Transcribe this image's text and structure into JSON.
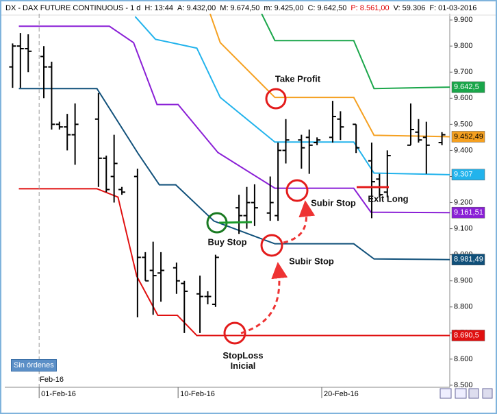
{
  "chart_data": {
    "type": "ohlc",
    "info": [
      "DX - DAX FUTURE CONTINUOUS - 1 d",
      "H: 13:44",
      "A: 9.432,00",
      "M: 9.674,50",
      "m: 9.425,00",
      "C: 9.642,50",
      "P: 8.561,00",
      "V: 59.306",
      "F: 01-03-2016"
    ],
    "status": "Sin órdenes",
    "x_period_label": "Feb-16",
    "xlim": [
      -1,
      56
    ],
    "xticks": [
      {
        "value": 3.4,
        "label": "01-Feb-16"
      },
      {
        "value": 21.2,
        "label": "10-Feb-16"
      },
      {
        "value": 39.6,
        "label": "20-Feb-16"
      }
    ],
    "ylim": [
      8492,
      9924
    ],
    "yticks": [
      {
        "value": 8500,
        "label": "8.500"
      },
      {
        "value": 8600,
        "label": "8.600"
      },
      {
        "value": 8700,
        "label": "8.700"
      },
      {
        "value": 8800,
        "label": "8.800"
      },
      {
        "value": 8900,
        "label": "8.900"
      },
      {
        "value": 9000,
        "label": "9.000"
      },
      {
        "value": 9100,
        "label": "9.100"
      },
      {
        "value": 9200,
        "label": "9.200"
      },
      {
        "value": 9300,
        "label": "9.300"
      },
      {
        "value": 9400,
        "label": "9.400"
      },
      {
        "value": 9500,
        "label": "9.500"
      },
      {
        "value": 9600,
        "label": "9.600"
      },
      {
        "value": 9700,
        "label": "9.700"
      },
      {
        "value": 9800,
        "label": "9.800"
      },
      {
        "value": 9900,
        "label": "9.900"
      }
    ],
    "grid": false,
    "bars": {
      "color": "#000000",
      "x": [
        0,
        1,
        2,
        4,
        5,
        6,
        7,
        8,
        11,
        12,
        13,
        14,
        16,
        17,
        18,
        19,
        21,
        22,
        24,
        25,
        26,
        29,
        30,
        31,
        33,
        34,
        35,
        37,
        38,
        39,
        41,
        42,
        44,
        46,
        47,
        48,
        51,
        52,
        53,
        55
      ],
      "open": [
        9720,
        9800,
        9790,
        9760,
        9720,
        9500,
        9490,
        9460,
        9520,
        9370,
        9300,
        9250,
        9300,
        8990,
        8940,
        8930,
        8950,
        8890,
        8850,
        8840,
        8810,
        9180,
        9150,
        9200,
        9160,
        9150,
        9400,
        9440,
        9450,
        9430,
        9450,
        9520,
        9500,
        9360,
        9290,
        9240,
        9420,
        9470,
        9450,
        9430
      ],
      "high": [
        9810,
        9850,
        9845,
        9800,
        9740,
        9510,
        9540,
        9580,
        9620,
        9380,
        9460,
        9260,
        9330,
        9010,
        9050,
        9010,
        8970,
        8900,
        8920,
        8860,
        9000,
        9230,
        9260,
        9270,
        9300,
        9430,
        9520,
        9460,
        9480,
        9450,
        9590,
        9550,
        9500,
        9430,
        9310,
        9400,
        9580,
        9520,
        9510,
        9470
      ],
      "low": [
        9640,
        9640,
        9700,
        9600,
        9480,
        9480,
        9400,
        9345,
        9260,
        9240,
        9200,
        9230,
        8760,
        8900,
        8770,
        8820,
        8850,
        8700,
        8700,
        8810,
        8800,
        9080,
        9100,
        9110,
        9130,
        9130,
        9350,
        9330,
        9310,
        9420,
        9430,
        9440,
        9390,
        9140,
        9220,
        9220,
        9420,
        9430,
        9310,
        9420
      ],
      "close": [
        9800,
        9790,
        9780,
        9720,
        9500,
        9490,
        9460,
        9500,
        9370,
        9250,
        9350,
        9240,
        8990,
        8900,
        8920,
        8940,
        8900,
        8860,
        8840,
        8840,
        8990,
        9150,
        9200,
        9180,
        9200,
        9400,
        9440,
        9410,
        9420,
        9440,
        9530,
        9490,
        9410,
        9280,
        9230,
        9380,
        9480,
        9440,
        9420,
        9460
      ]
    },
    "series": [
      {
        "color": "#1aa64a",
        "label_color": "#ffffff",
        "x": [
          31.9,
          33.6,
          43.7,
          46.3,
          56
        ],
        "values": [
          9924,
          9821,
          9821,
          9637,
          9642.5
        ],
        "last": {
          "value": 9642.5,
          "label": "9.642,5"
        }
      },
      {
        "color": "#f5a020",
        "label_color": "#000000",
        "x": [
          25.3,
          26.6,
          33.6,
          43.7,
          46.3,
          56
        ],
        "values": [
          9924,
          9813,
          9603,
          9603,
          9458,
          9452.49
        ],
        "last": {
          "value": 9452.49,
          "label": "9.452,49"
        }
      },
      {
        "color": "#22b3ec",
        "label_color": "#ffffff",
        "x": [
          15.7,
          18.3,
          23.6,
          26.6,
          33.6,
          43.7,
          46.3,
          56
        ],
        "values": [
          9913,
          9826,
          9792,
          9603,
          9432,
          9432,
          9313,
          9307
        ],
        "last": {
          "value": 9307,
          "label": "9.307"
        }
      },
      {
        "color": "#8a1fd6",
        "label_color": "#ffffff",
        "x": [
          0.8,
          12.4,
          15.5,
          18.5,
          21.2,
          26.3,
          33.6,
          43.7,
          45.9,
          56
        ],
        "values": [
          9876,
          9876,
          9813,
          9576,
          9576,
          9392,
          9255,
          9255,
          9163,
          9161.51
        ],
        "last": {
          "value": 9161.51,
          "label": "9.161,51"
        }
      },
      {
        "color": "#10507a",
        "label_color": "#ffffff",
        "x": [
          0.8,
          10.8,
          16.1,
          18.8,
          20.9,
          25.8,
          33.6,
          43.7,
          46.3,
          56
        ],
        "values": [
          9637,
          9637,
          9387,
          9268,
          9268,
          9129,
          9042,
          9042,
          8984,
          8981.49
        ],
        "last": {
          "value": 8981.49,
          "label": "8.981,49"
        }
      },
      {
        "color": "#e01010",
        "label_color": "#ffffff",
        "x": [
          0.8,
          10.8,
          13.5,
          15.9,
          18.6,
          21.1,
          23.6,
          56
        ],
        "values": [
          9253,
          9253,
          9221,
          8918,
          8768,
          8768,
          8690.5,
          8690.5
        ],
        "last": {
          "value": 8690.5,
          "label": "8.690,5"
        }
      }
    ],
    "annotations": [
      "Take Profit",
      "Subir Stop",
      "Subir Stop",
      "Exit Long",
      "Buy Stop",
      "StopLoss Inicial"
    ]
  }
}
